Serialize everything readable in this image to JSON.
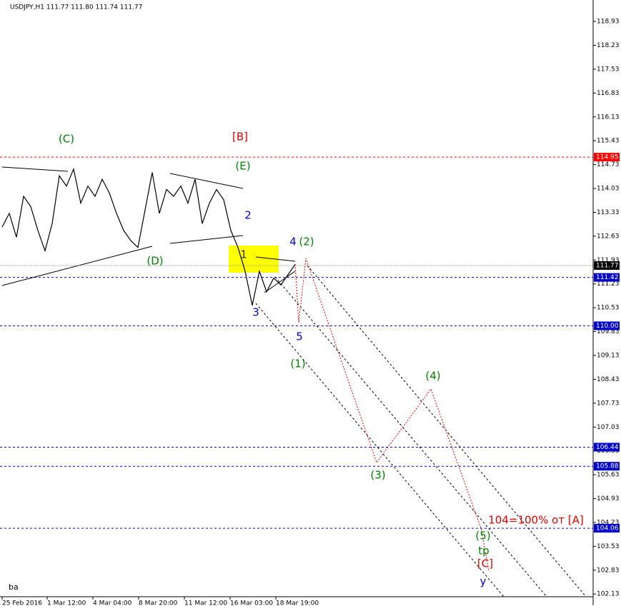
{
  "chart_data": {
    "type": "line",
    "title": "USDJPY,H1  111.77 111.80 111.74 111.77",
    "footer": "ba",
    "color": "#000000",
    "values": [
      112.9,
      113.3,
      112.6,
      113.8,
      113.5,
      112.8,
      112.2,
      113.0,
      114.4,
      114.1,
      114.6,
      113.6,
      114.1,
      113.8,
      114.3,
      113.9,
      113.3,
      112.8,
      112.5,
      112.3,
      113.4,
      114.5,
      113.3,
      114.0,
      113.8,
      114.1,
      113.6,
      114.3,
      113.0,
      113.6,
      114.0,
      113.7,
      112.8,
      112.3,
      111.6,
      110.6,
      111.6,
      111.0,
      111.4,
      111.2,
      111.5,
      111.8
    ],
    "ylim": [
      101.8,
      119.56
    ],
    "yticks": [
      118.93,
      118.23,
      117.53,
      116.83,
      116.13,
      115.43,
      114.73,
      114.03,
      113.33,
      112.63,
      111.93,
      111.23,
      110.53,
      109.83,
      109.13,
      108.43,
      107.73,
      107.03,
      106.33,
      105.63,
      104.93,
      104.23,
      103.53,
      102.83,
      102.13
    ],
    "x_labels": [
      "25 Feb 2016",
      "1 Mar 12:00",
      "4 Mar 04:00",
      "8 Mar 20:00",
      "11 Mar 12:00",
      "16 Mar 03:00",
      "18 Mar 19:00"
    ],
    "levels": [
      {
        "value": 114.95,
        "color": "#ff0000"
      },
      {
        "value": 111.42,
        "color": "#0000cc"
      },
      {
        "value": 110,
        "label": "110.00",
        "color": "#0000cc"
      },
      {
        "value": 106.44,
        "color": "#0000cc"
      },
      {
        "value": 105.88,
        "color": "#0000cc"
      },
      {
        "value": 104.06,
        "color": "#0000cc"
      }
    ],
    "current": {
      "value": 111.77,
      "color": "#000000"
    },
    "annotations": [
      {
        "text": "(C)",
        "color": "#008000"
      },
      {
        "text": "[B]",
        "color": "#e00000"
      },
      {
        "text": "(E)",
        "color": "#008000"
      },
      {
        "text": "2",
        "color": "#0000dd"
      },
      {
        "text": "(D)",
        "color": "#008000"
      },
      {
        "text": "1",
        "color": "#333333"
      },
      {
        "text": "4",
        "color": "#0000dd"
      },
      {
        "text": "(2)",
        "color": "#008000"
      },
      {
        "text": "3",
        "color": "#0000dd"
      },
      {
        "text": "5",
        "color": "#0000dd"
      },
      {
        "text": "(1)",
        "color": "#008000"
      },
      {
        "text": "(4)",
        "color": "#008000"
      },
      {
        "text": "(3)",
        "color": "#008000"
      },
      {
        "text": "104=100% от [A]",
        "color": "#e00000"
      },
      {
        "text": "(5)",
        "color": "#008000"
      },
      {
        "text": "tp",
        "color": "#008000"
      },
      {
        "text": "[C]",
        "color": "#e00000"
      },
      {
        "text": "y",
        "color": "#0000dd"
      }
    ]
  }
}
